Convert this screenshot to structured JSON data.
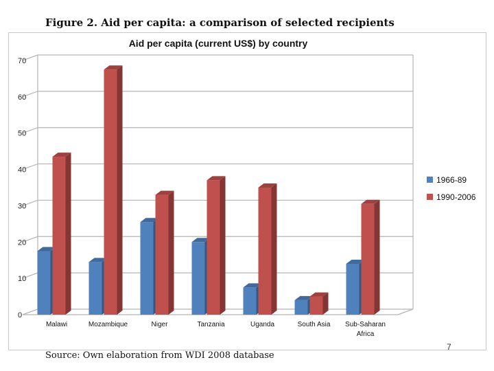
{
  "figure_title": "Figure 2. Aid per capita: a comparison of selected recipients",
  "source_note": "Source: Own elaboration from WDI 2008 database",
  "page_number": "7",
  "chart_data": {
    "type": "bar",
    "title": "Aid per capita (current US$) by country",
    "xlabel": "",
    "ylabel": "",
    "ylim": [
      0,
      70
    ],
    "yticks": [
      "0",
      "10",
      "20",
      "30",
      "40",
      "50",
      "60",
      "70"
    ],
    "categories": [
      [
        "Malawi"
      ],
      [
        "Mozambique"
      ],
      [
        "Niger"
      ],
      [
        "Tanzania"
      ],
      [
        "Uganda"
      ],
      [
        "South Asia"
      ],
      [
        "Sub-Saharan",
        "Africa"
      ]
    ],
    "series": [
      {
        "name": "1966-89",
        "color": "#4f81bd",
        "values": [
          17.5,
          14.5,
          25.5,
          20,
          7.5,
          4,
          14
        ]
      },
      {
        "name": "1990-2006",
        "color": "#c0504d",
        "values": [
          43.5,
          67.5,
          33,
          37,
          35,
          5,
          30.5
        ]
      }
    ],
    "grid": true,
    "legend_position": "right",
    "style": "3d"
  }
}
